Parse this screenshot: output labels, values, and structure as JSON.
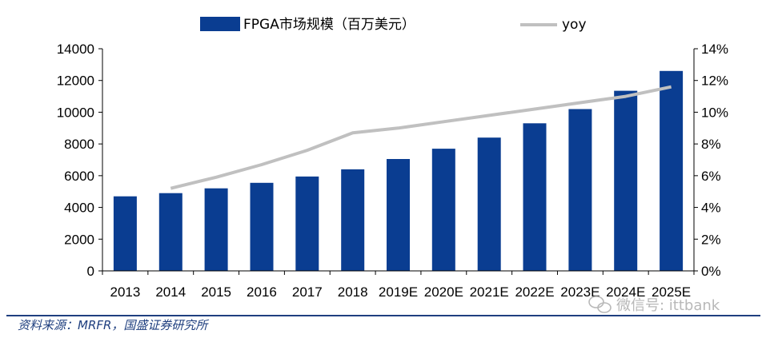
{
  "chart_data": {
    "type": "bar",
    "categories": [
      "2013",
      "2014",
      "2015",
      "2016",
      "2017",
      "2018",
      "2019E",
      "2020E",
      "2021E",
      "2022E",
      "2023E",
      "2024E",
      "2025E"
    ],
    "series": [
      {
        "name": "FPGA市场规模（百万美元）",
        "type": "bar",
        "axis": "left",
        "color": "#0a3d91",
        "values": [
          4700,
          4900,
          5200,
          5550,
          5950,
          6400,
          7050,
          7700,
          8400,
          9300,
          10200,
          11350,
          12600
        ]
      },
      {
        "name": "yoy",
        "type": "line",
        "axis": "right",
        "color": "#c0c0c0",
        "values": [
          null,
          5.2,
          5.9,
          6.7,
          7.6,
          8.7,
          9.0,
          9.4,
          9.8,
          10.2,
          10.6,
          11.0,
          11.6
        ]
      }
    ],
    "ylim": [
      0,
      14000
    ],
    "yticks": [
      "0",
      "2000",
      "4000",
      "6000",
      "8000",
      "10000",
      "12000",
      "14000"
    ],
    "y2lim": [
      0,
      14
    ],
    "y2ticks": [
      "0%",
      "2%",
      "4%",
      "6%",
      "8%",
      "10%",
      "12%",
      "14%"
    ],
    "grid": false,
    "legend_position": "top"
  },
  "source": "资料来源：MRFR，国盛证券研究所",
  "watermark": "微信号: ittbank"
}
